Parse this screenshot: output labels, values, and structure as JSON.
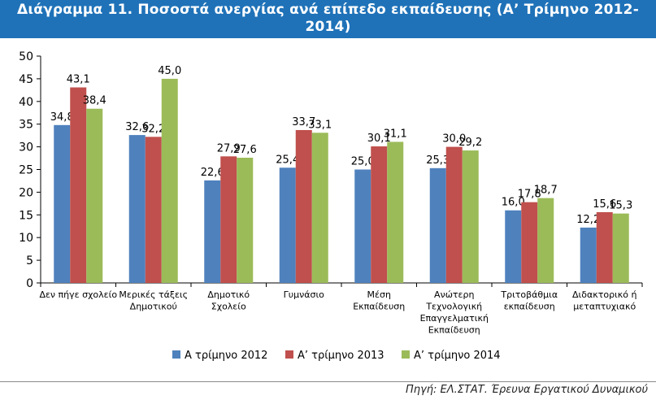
{
  "title": "Διάγραμμα 11. Ποσοστά ανεργίας ανά επίπεδο εκπαίδευσης (Α’ Τρίμηνο 2012-2014)",
  "source_note": "Πηγή: ΕΛ.ΣΤΑΤ. Έρευνα Εργατικού Δυναμικού",
  "colors": {
    "title_bar": "#1f72b8",
    "series": [
      "#4f81bd",
      "#c0504d",
      "#9bbb59"
    ]
  },
  "chart_data": {
    "type": "bar",
    "title": "Διάγραμμα 11. Ποσοστά ανεργίας ανά επίπεδο εκπαίδευσης (Α’ Τρίμηνο 2012-2014)",
    "xlabel": "",
    "ylabel": "",
    "ylim": [
      0,
      50
    ],
    "yticks": [
      0,
      5,
      10,
      15,
      20,
      25,
      30,
      35,
      40,
      45,
      50
    ],
    "grid": false,
    "legend_position": "bottom",
    "categories": [
      [
        "Δεν πήγε σχολείο"
      ],
      [
        "Μερικές τάξεις",
        "Δημοτικού"
      ],
      [
        "Δημοτικό",
        "Σχολείο"
      ],
      [
        "Γυμνάσιο"
      ],
      [
        "Μέση",
        "Εκπαίδευση"
      ],
      [
        "Ανώτερη",
        "Τεχνολογική",
        "Επαγγελματική",
        "Εκπαίδευση"
      ],
      [
        "Τριτοβάθμια",
        "εκπαίδευση"
      ],
      [
        "Διδακτορικό ή",
        "μεταπτυχιακό"
      ]
    ],
    "series": [
      {
        "name": "Α τρίμηνο 2012",
        "values": [
          34.8,
          32.6,
          22.6,
          25.4,
          25.0,
          25.3,
          16.0,
          12.2
        ],
        "labels": [
          "34,8",
          "32,6",
          "22,6",
          "25,4",
          "25,0",
          "25,3",
          "16,0",
          "12,2"
        ]
      },
      {
        "name": "Α’ τρίμηνο 2013",
        "values": [
          43.1,
          32.2,
          27.9,
          33.7,
          30.1,
          30.0,
          17.8,
          15.6
        ],
        "labels": [
          "43,1",
          "32,2",
          "27,9",
          "33,7",
          "30,1",
          "30,0",
          "17,8",
          "15,6"
        ]
      },
      {
        "name": "Α’ τρίμηνο 2014",
        "values": [
          38.4,
          45.0,
          27.6,
          33.1,
          31.1,
          29.2,
          18.7,
          15.3
        ],
        "labels": [
          "38,4",
          "45,0",
          "27,6",
          "33,1",
          "31,1",
          "29,2",
          "18,7",
          "15,3"
        ]
      }
    ]
  }
}
